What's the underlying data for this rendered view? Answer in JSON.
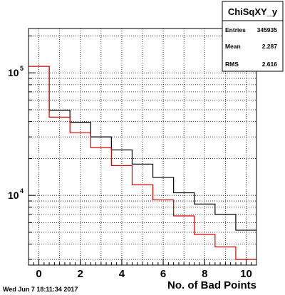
{
  "timestamp": "Wed Jun  7 18:11:34 2017",
  "stats": {
    "title": "ChiSqXY_y",
    "rows": [
      {
        "label": "Entries",
        "value": "345935"
      },
      {
        "label": "Mean",
        "value": "2.287"
      },
      {
        "label": "RMS",
        "value": "2.616"
      }
    ]
  },
  "chart_data": {
    "type": "histogram-step",
    "title": "",
    "xlabel": "No. of Bad Points",
    "ylabel": "",
    "xlim": [
      -0.5,
      10.5
    ],
    "ylim": [
      2700,
      230000
    ],
    "y_log": true,
    "grid": true,
    "x_ticks": [
      0,
      2,
      4,
      6,
      8,
      10
    ],
    "x_tick_labels": [
      "0",
      "2",
      "4",
      "6",
      "8",
      "10"
    ],
    "y_ticks": [
      10000,
      100000
    ],
    "y_tick_labels": [
      {
        "base": "10",
        "exp": "4"
      },
      {
        "base": "10",
        "exp": "5"
      }
    ],
    "bin_edges": [
      -0.5,
      0.5,
      1.5,
      2.5,
      3.5,
      4.5,
      5.5,
      6.5,
      7.5,
      8.5,
      9.5,
      10.5
    ],
    "series": [
      {
        "color": "#000000",
        "values": [
          113000,
          49500,
          39500,
          30000,
          23500,
          18000,
          14000,
          10500,
          8500,
          7000,
          5200
        ]
      },
      {
        "color": "#d40000",
        "values": [
          113000,
          43500,
          32500,
          24500,
          17500,
          12200,
          9200,
          6800,
          4800,
          3800,
          3000
        ]
      }
    ]
  }
}
